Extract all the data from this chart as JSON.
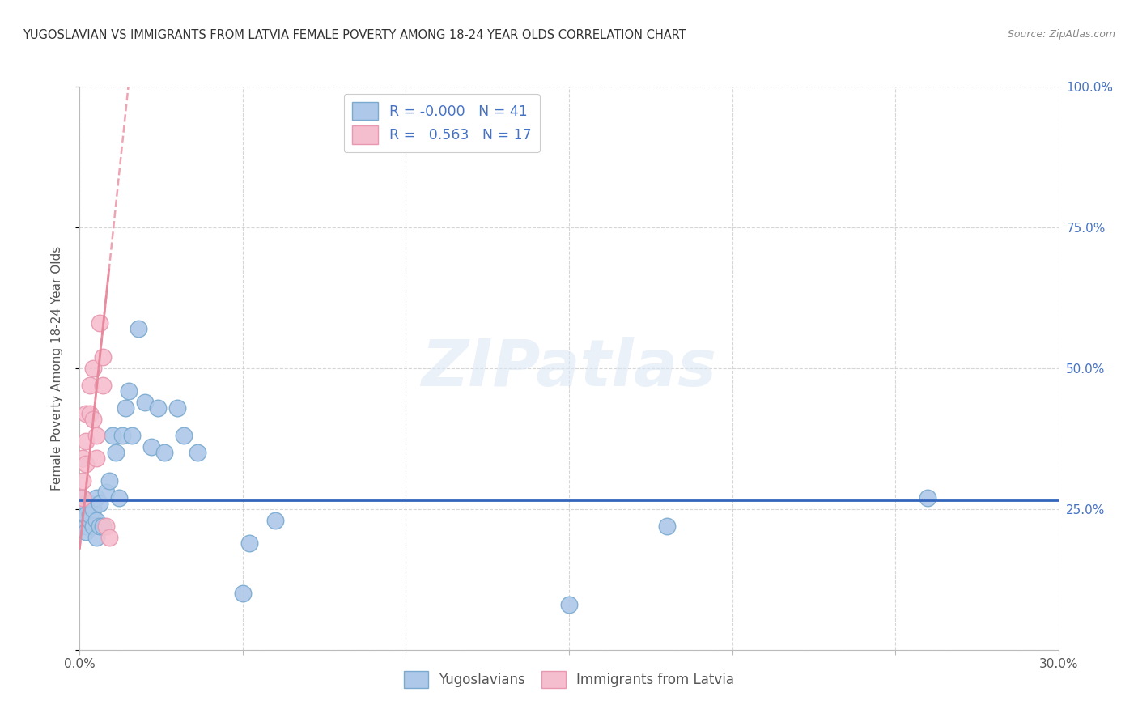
{
  "title": "YUGOSLAVIAN VS IMMIGRANTS FROM LATVIA FEMALE POVERTY AMONG 18-24 YEAR OLDS CORRELATION CHART",
  "source": "Source: ZipAtlas.com",
  "ylabel": "Female Poverty Among 18-24 Year Olds",
  "x_min": 0.0,
  "x_max": 0.3,
  "y_min": 0.0,
  "y_max": 1.0,
  "x_ticks": [
    0.0,
    0.05,
    0.1,
    0.15,
    0.2,
    0.25,
    0.3
  ],
  "x_tick_labels": [
    "0.0%",
    "",
    "",
    "",
    "",
    "",
    "30.0%"
  ],
  "y_ticks": [
    0.0,
    0.25,
    0.5,
    0.75,
    1.0
  ],
  "y_tick_labels_right": [
    "",
    "25.0%",
    "50.0%",
    "75.0%",
    "100.0%"
  ],
  "yugoslavians_x": [
    0.001,
    0.001,
    0.001,
    0.002,
    0.002,
    0.002,
    0.002,
    0.003,
    0.003,
    0.003,
    0.004,
    0.004,
    0.005,
    0.005,
    0.005,
    0.006,
    0.006,
    0.007,
    0.008,
    0.009,
    0.01,
    0.011,
    0.012,
    0.013,
    0.014,
    0.015,
    0.016,
    0.018,
    0.02,
    0.022,
    0.024,
    0.026,
    0.03,
    0.032,
    0.036,
    0.05,
    0.052,
    0.06,
    0.15,
    0.26,
    0.18
  ],
  "yugoslavians_y": [
    0.27,
    0.25,
    0.23,
    0.26,
    0.22,
    0.24,
    0.21,
    0.26,
    0.23,
    0.24,
    0.25,
    0.22,
    0.27,
    0.23,
    0.2,
    0.26,
    0.22,
    0.22,
    0.28,
    0.3,
    0.38,
    0.35,
    0.27,
    0.38,
    0.43,
    0.46,
    0.38,
    0.57,
    0.44,
    0.36,
    0.43,
    0.35,
    0.43,
    0.38,
    0.35,
    0.1,
    0.19,
    0.23,
    0.08,
    0.27,
    0.22
  ],
  "latvia_x": [
    0.001,
    0.001,
    0.001,
    0.002,
    0.002,
    0.002,
    0.003,
    0.003,
    0.004,
    0.004,
    0.005,
    0.005,
    0.006,
    0.007,
    0.007,
    0.008,
    0.009
  ],
  "latvia_y": [
    0.27,
    0.3,
    0.34,
    0.33,
    0.37,
    0.42,
    0.42,
    0.47,
    0.41,
    0.5,
    0.34,
    0.38,
    0.58,
    0.52,
    0.47,
    0.22,
    0.2
  ],
  "yugoslavians_R": "-0.000",
  "yugoslavians_N": "41",
  "latvia_R": "0.563",
  "latvia_N": "17",
  "hline_y": 0.265,
  "yug_color": "#adc8e8",
  "yug_edge_color": "#7aaad0",
  "latvia_color": "#f5bece",
  "latvia_edge_color": "#e898b0",
  "trend_yug_color": "#3366bb",
  "trend_latvia_color": "#e8869a",
  "bg_color": "#ffffff",
  "grid_color": "#cccccc",
  "right_tick_color": "#4472c4",
  "title_color": "#333333"
}
